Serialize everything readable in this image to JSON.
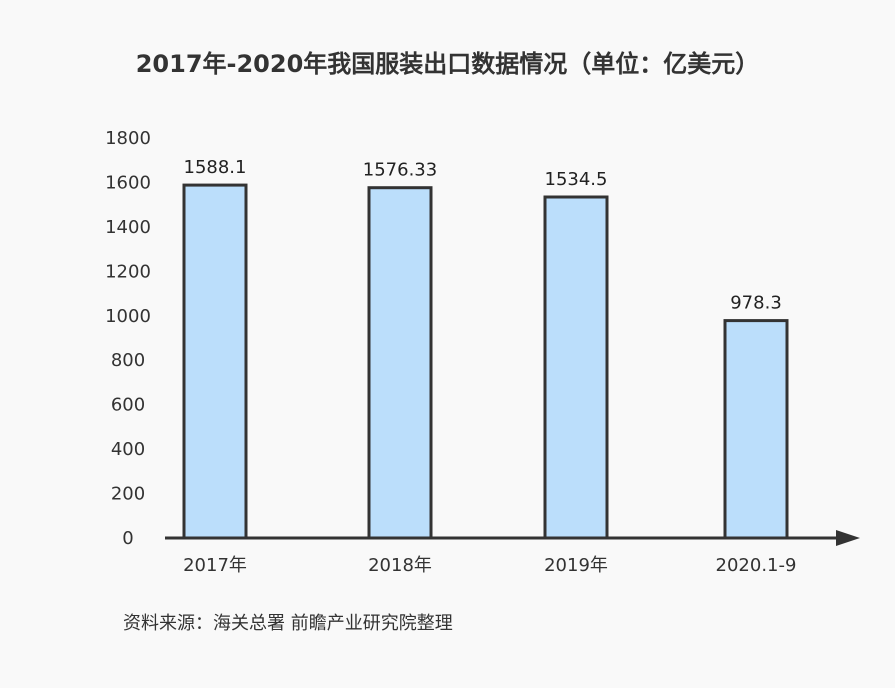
{
  "title": "2017年-2020年我国服装出口数据情况（单位：亿美元）",
  "source": "资料来源：海关总署 前瞻产业研究院整理",
  "colors": {
    "bar_fill": "#bbdefb",
    "bar_stroke": "#333333",
    "axis": "#333333"
  },
  "chart_data": {
    "type": "bar",
    "categories": [
      "2017年",
      "2018年",
      "2019年",
      "2020.1-9"
    ],
    "values": [
      1588.1,
      1576.33,
      1534.5,
      978.3
    ],
    "data_labels": [
      "1588.1",
      "1576.33",
      "1534.5",
      "978.3"
    ],
    "y_ticks": [
      "0",
      "200",
      "400",
      "600",
      "800",
      "1000",
      "1200",
      "1400",
      "1600",
      "1800"
    ],
    "ylim": [
      0,
      1800
    ],
    "grid": false,
    "legend": "none"
  }
}
